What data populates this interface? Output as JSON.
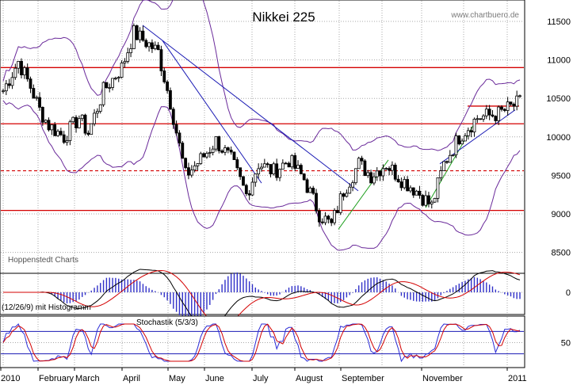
{
  "page": {
    "title": "Nikkei 225",
    "watermark": "www.chartbuero.de",
    "source_label": "Hoppenstedt Charts"
  },
  "colors": {
    "price": "#000000",
    "bands": "#6a2a9a",
    "support": "#d40000",
    "trend": "#1a1ab4",
    "trend_green": "#1fa01f",
    "grid": "#a8a8a8",
    "macd": "#000000",
    "signal": "#d40000",
    "histogram": "#3030c8",
    "stoch_k": "#2b2bd6",
    "stoch_d": "#d40000"
  },
  "chart_data": [
    {
      "type": "candlestick",
      "title": "Nikkei 225",
      "ylim": [
        8400,
        11600
      ],
      "y_ticks": [
        8500,
        9000,
        9500,
        10000,
        10500,
        11000,
        11500
      ],
      "x_labels": [
        "2010",
        "February",
        "March",
        "April",
        "May",
        "June",
        "July",
        "August",
        "September",
        "November",
        "2011"
      ],
      "support_lines": [
        10900,
        10170,
        9045
      ],
      "dashed_line": 9560,
      "resistance_segment": 10400,
      "price_path": [
        [
          0,
          10600
        ],
        [
          5,
          10980
        ],
        [
          9,
          10650
        ],
        [
          12,
          10350
        ],
        [
          15,
          10150
        ],
        [
          20,
          10000
        ],
        [
          25,
          10250
        ],
        [
          28,
          10050
        ],
        [
          33,
          10600
        ],
        [
          39,
          10900
        ],
        [
          43,
          11350
        ],
        [
          48,
          11200
        ],
        [
          51,
          11100
        ],
        [
          55,
          10450
        ],
        [
          60,
          9500
        ],
        [
          66,
          9750
        ],
        [
          70,
          9950
        ],
        [
          75,
          9700
        ],
        [
          80,
          9250
        ],
        [
          84,
          9650
        ],
        [
          89,
          9550
        ],
        [
          94,
          9700
        ],
        [
          99,
          9450
        ],
        [
          104,
          9000
        ],
        [
          108,
          8850
        ],
        [
          112,
          9300
        ],
        [
          117,
          9650
        ],
        [
          121,
          9500
        ],
        [
          126,
          9650
        ],
        [
          131,
          9450
        ],
        [
          136,
          9300
        ],
        [
          141,
          9100
        ],
        [
          145,
          9650
        ],
        [
          150,
          10000
        ],
        [
          156,
          10250
        ],
        [
          163,
          10300
        ],
        [
          170,
          10450
        ]
      ],
      "grid": true
    },
    {
      "type": "line",
      "label": "(12/26/9) mit Histogramm",
      "y_ticks": [
        0
      ],
      "grid": true
    },
    {
      "type": "line",
      "title": "Stochastik (5/3/3)",
      "y_ticks": [
        50
      ],
      "grid": true
    }
  ]
}
